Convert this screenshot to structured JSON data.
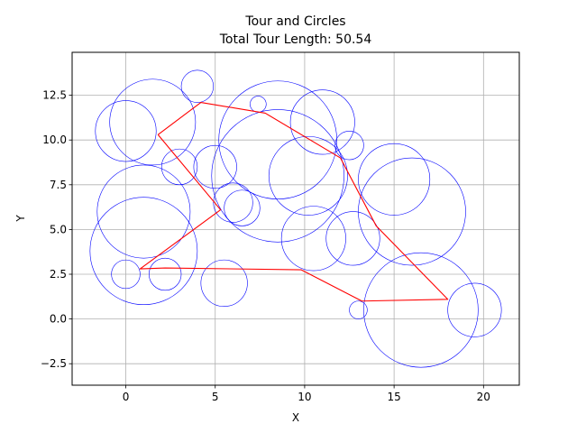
{
  "chart_data": {
    "type": "scatter",
    "title": "Tour and Circles",
    "subtitle": "Total Tour Length: 50.54",
    "xlabel": "X",
    "ylabel": "Y",
    "xlim": [
      -3,
      22
    ],
    "ylim": [
      -3.7,
      14.9
    ],
    "xticks": [
      0,
      5,
      10,
      15,
      20
    ],
    "yticks": [
      -2.5,
      0.0,
      2.5,
      5.0,
      7.5,
      10.0,
      12.5
    ],
    "xtick_labels": [
      "0",
      "5",
      "10",
      "15",
      "20"
    ],
    "ytick_labels": [
      "−2.5",
      "0.0",
      "2.5",
      "5.0",
      "7.5",
      "10.0",
      "12.5"
    ],
    "grid": true,
    "circle_color": "#0000ff",
    "tour_color": "#ff0000",
    "circles": [
      {
        "x": 0.0,
        "y": 10.5,
        "r": 1.7
      },
      {
        "x": 1.5,
        "y": 11.0,
        "r": 2.4
      },
      {
        "x": 4.0,
        "y": 13.0,
        "r": 0.9
      },
      {
        "x": 3.0,
        "y": 8.5,
        "r": 1.0
      },
      {
        "x": 1.0,
        "y": 6.0,
        "r": 2.6
      },
      {
        "x": 1.0,
        "y": 3.8,
        "r": 3.0
      },
      {
        "x": 0.0,
        "y": 2.5,
        "r": 0.8
      },
      {
        "x": 2.2,
        "y": 2.5,
        "r": 0.9
      },
      {
        "x": 5.0,
        "y": 8.5,
        "r": 1.2
      },
      {
        "x": 6.0,
        "y": 6.5,
        "r": 1.1
      },
      {
        "x": 6.5,
        "y": 6.2,
        "r": 1.0
      },
      {
        "x": 5.5,
        "y": 2.0,
        "r": 1.3
      },
      {
        "x": 7.4,
        "y": 12.0,
        "r": 0.45
      },
      {
        "x": 8.5,
        "y": 10.0,
        "r": 3.3
      },
      {
        "x": 8.5,
        "y": 8.0,
        "r": 3.7
      },
      {
        "x": 11.0,
        "y": 11.0,
        "r": 1.8
      },
      {
        "x": 10.2,
        "y": 8.0,
        "r": 2.2
      },
      {
        "x": 12.5,
        "y": 9.7,
        "r": 0.8
      },
      {
        "x": 10.5,
        "y": 4.5,
        "r": 1.8
      },
      {
        "x": 12.7,
        "y": 4.5,
        "r": 1.5
      },
      {
        "x": 15.0,
        "y": 7.8,
        "r": 2.0
      },
      {
        "x": 16.0,
        "y": 6.0,
        "r": 3.0
      },
      {
        "x": 16.5,
        "y": 0.5,
        "r": 3.2
      },
      {
        "x": 13.0,
        "y": 0.5,
        "r": 0.5
      },
      {
        "x": 19.5,
        "y": 0.5,
        "r": 1.5
      }
    ],
    "tour": [
      {
        "x": 1.8,
        "y": 10.3
      },
      {
        "x": 4.2,
        "y": 12.1
      },
      {
        "x": 7.8,
        "y": 11.5
      },
      {
        "x": 12.0,
        "y": 9.0
      },
      {
        "x": 14.0,
        "y": 5.2
      },
      {
        "x": 18.0,
        "y": 1.1
      },
      {
        "x": 13.2,
        "y": 1.0
      },
      {
        "x": 9.8,
        "y": 2.75
      },
      {
        "x": 2.2,
        "y": 2.85
      },
      {
        "x": 0.8,
        "y": 2.8
      },
      {
        "x": 5.3,
        "y": 6.1
      },
      {
        "x": 1.8,
        "y": 10.3
      }
    ]
  }
}
